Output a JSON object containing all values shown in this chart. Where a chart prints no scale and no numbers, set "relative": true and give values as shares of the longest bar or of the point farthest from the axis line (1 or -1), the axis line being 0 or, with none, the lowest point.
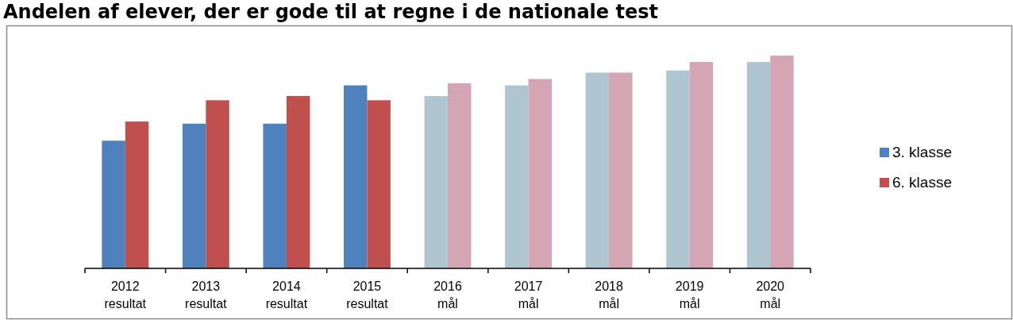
{
  "chart_data": {
    "type": "bar",
    "title": "Andelen af elever, der er gode til at regne i de nationale test",
    "relative": true,
    "categories": [
      "2012\nresultat",
      "2013\nresultat",
      "2014\nresultat",
      "2015\nresultat",
      "2016\nmål",
      "2017\nmål",
      "2018\nmål",
      "2019\nmål",
      "2020\nmål"
    ],
    "series": [
      {
        "name": "3. klasse",
        "color": "#4f81bd",
        "colors": [
          "#4f81bd",
          "#4f81bd",
          "#4f81bd",
          "#4f81bd",
          "#afc5d0",
          "#afc5d0",
          "#afc5d0",
          "#afc5d0",
          "#afc5d0"
        ],
        "values": [
          0.6,
          0.68,
          0.68,
          0.86,
          0.81,
          0.86,
          0.92,
          0.93,
          0.97
        ]
      },
      {
        "name": "6. klasse",
        "color": "#c0504d",
        "colors": [
          "#c0504d",
          "#c0504d",
          "#c0504d",
          "#c0504d",
          "#d4a5b2",
          "#d4a5b2",
          "#d4a5b2",
          "#d4a5b2",
          "#d4a5b2"
        ],
        "values": [
          0.69,
          0.79,
          0.81,
          0.79,
          0.87,
          0.89,
          0.92,
          0.97,
          1
        ]
      }
    ],
    "legend": "right"
  }
}
